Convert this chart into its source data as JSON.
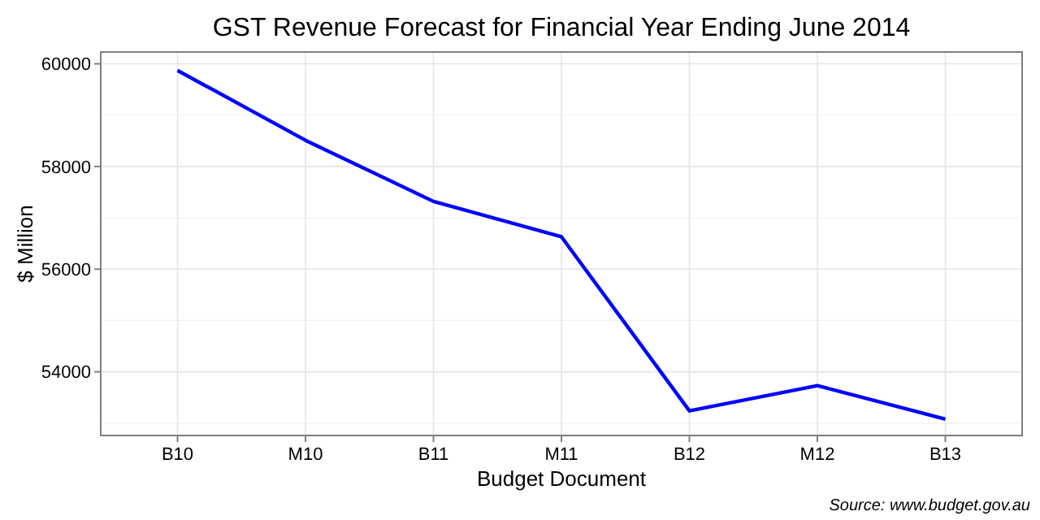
{
  "chart_data": {
    "type": "line",
    "title": "GST Revenue Forecast for Financial Year Ending June 2014",
    "xlabel": "Budget Document",
    "ylabel": "$ Million",
    "annotations": [
      "Source: www.budget.gov.au"
    ],
    "categories": [
      "B10",
      "M10",
      "B11",
      "M11",
      "B12",
      "M12",
      "B13"
    ],
    "series": [
      {
        "color": "#0000ff",
        "values": [
          59870,
          58510,
          57320,
          56630,
          53240,
          53730,
          53080
        ]
      }
    ],
    "ylim": [
      52760,
      60230
    ],
    "yticks": [
      54000,
      56000,
      58000,
      60000
    ],
    "grid": true
  }
}
